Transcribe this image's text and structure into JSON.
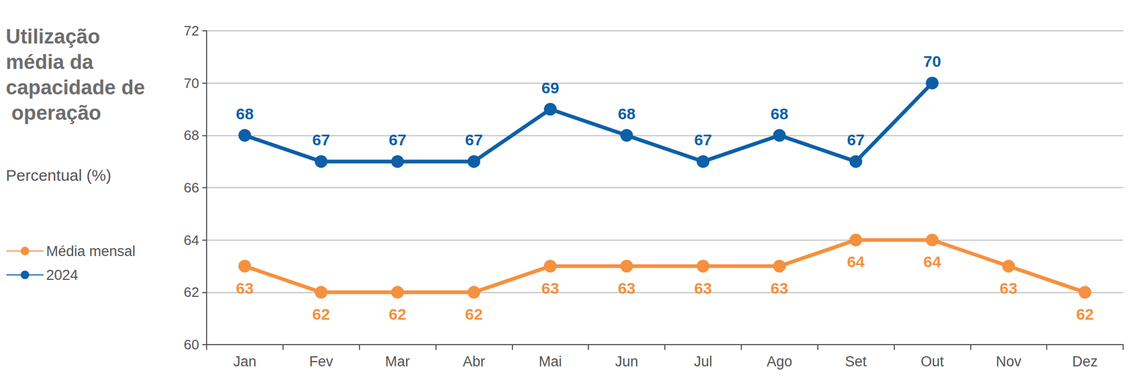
{
  "chart_data": {
    "type": "line",
    "title": "Utilização média da capacidade de operação",
    "subtitle": "Percentual (%)",
    "categories": [
      "Jan",
      "Fev",
      "Mar",
      "Abr",
      "Mai",
      "Jun",
      "Jul",
      "Ago",
      "Set",
      "Out",
      "Nov",
      "Dez"
    ],
    "series": [
      {
        "name": "Média mensal",
        "color": "#f4913e",
        "values": [
          63,
          62,
          62,
          62,
          63,
          63,
          63,
          63,
          64,
          64,
          63,
          62
        ]
      },
      {
        "name": "2024",
        "color": "#0d5fa8",
        "values": [
          68,
          67,
          67,
          67,
          69,
          68,
          67,
          68,
          67,
          70,
          null,
          null
        ]
      }
    ],
    "ylim": [
      60,
      72
    ],
    "yticks": [
      60,
      62,
      64,
      66,
      68,
      70,
      72
    ],
    "grid": true,
    "legend": "left",
    "data_labels": true,
    "marker": "circle"
  }
}
